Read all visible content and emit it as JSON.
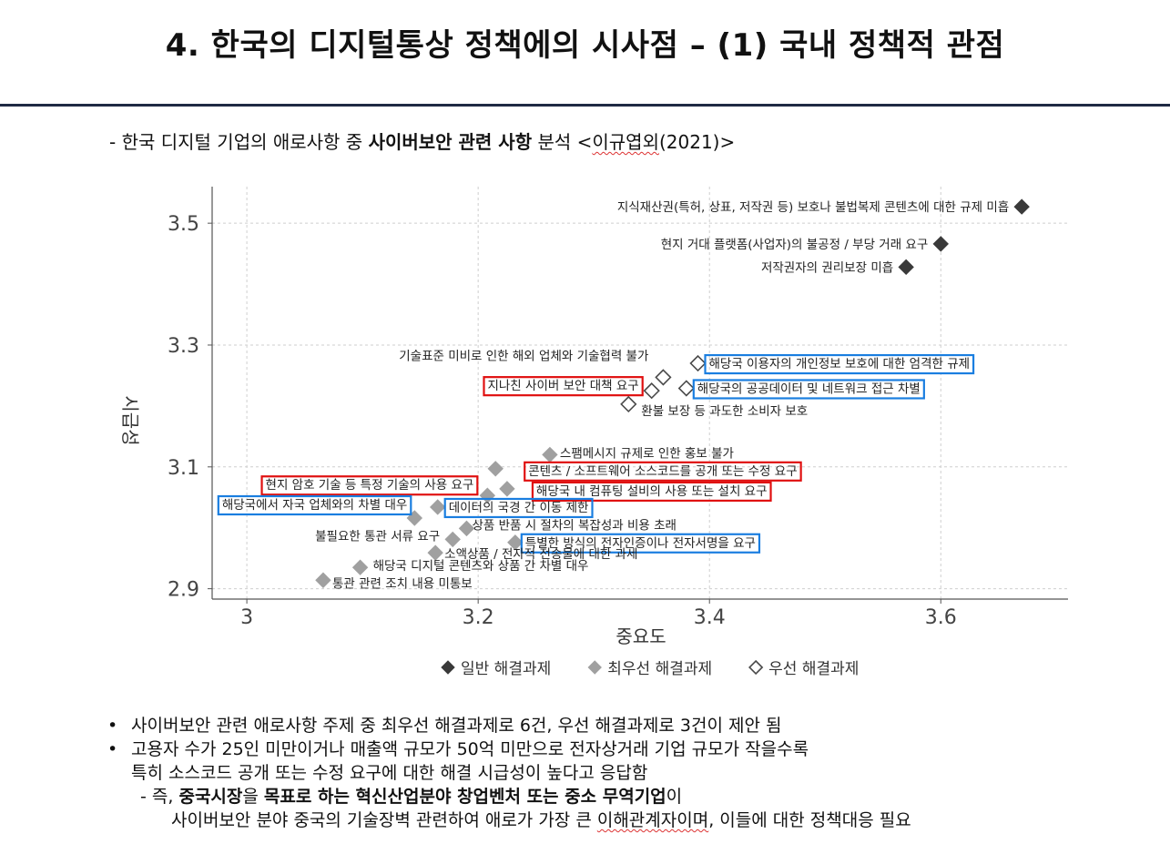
{
  "slide": {
    "title": "4. 한국의 디지털통상 정책에의 시사점 – (1) 국내 정책적 관점",
    "subtitle_prefix": "- 한국 디지털 기업의 애로사항 중 ",
    "subtitle_bold": "사이버보안 관련 사항",
    "subtitle_middle": " 분석 <",
    "subtitle_ref": "이규엽외",
    "subtitle_suffix": "(2021)>"
  },
  "chart_data": {
    "type": "scatter",
    "xlabel": "중요도",
    "ylabel": "시급성",
    "xlim": [
      2.97,
      3.71
    ],
    "ylim": [
      2.883,
      3.56
    ],
    "xticks": [
      3.0,
      3.2,
      3.4,
      3.6
    ],
    "yticks": [
      2.9,
      3.1,
      3.3,
      3.5
    ],
    "xtick_labels": [
      "3",
      "3.2",
      "3.4",
      "3.6"
    ],
    "ytick_labels": [
      "2.9",
      "3.1",
      "3.3",
      "3.5"
    ],
    "grid": true,
    "legend_position": "bottom-center",
    "colors": {
      "general": "#3a3a3a",
      "top_priority": "#a0a0a0",
      "priority": "#4a4a4a",
      "box_red": "#e01010",
      "box_blue": "#1a7ee0"
    },
    "series": [
      {
        "name": "일반 해결과제",
        "marker": "filled-diamond-dark",
        "points": [
          {
            "x": 3.67,
            "y": 3.527,
            "label": "지식재산권(특허, 상표, 저작권 등) 보호나 불법복제 콘텐츠에 대한 규제 미흡",
            "highlight": "none"
          },
          {
            "x": 3.6,
            "y": 3.466,
            "label": "현지 거대 플랫폼(사업자)의 불공정 / 부당 거래 요구",
            "highlight": "none"
          },
          {
            "x": 3.57,
            "y": 3.428,
            "label": "저작권자의 권리보장 미흡",
            "highlight": "none"
          }
        ]
      },
      {
        "name": "최우선 해결과제",
        "marker": "filled-diamond-gray",
        "points": [
          {
            "x": 3.262,
            "y": 3.12,
            "label": "스팸메시지 규제로 인한 홍보 불가",
            "highlight": "none"
          },
          {
            "x": 3.215,
            "y": 3.097,
            "label": "콘텐츠 / 소프트웨어 소스코드를 공개 또는 수정 요구",
            "highlight": "red"
          },
          {
            "x": 3.225,
            "y": 3.064,
            "label": "해당국 내 컴퓨팅 설비의 사용 또는 설치 요구",
            "highlight": "red"
          },
          {
            "x": 3.208,
            "y": 3.053,
            "label": "현지 암호 기술 등 특정 기술의 사용 요구",
            "highlight": "red"
          },
          {
            "x": 3.165,
            "y": 3.034,
            "label": "데이터의 국경 간 이동 제한",
            "highlight": "blue"
          },
          {
            "x": 3.145,
            "y": 3.016,
            "label": "해당국에서 자국 업체와의 차별 대우",
            "highlight": "blue"
          },
          {
            "x": 3.19,
            "y": 2.999,
            "label": "상품 반품 시 절차의 복잡성과 비용 초래",
            "highlight": "none"
          },
          {
            "x": 3.178,
            "y": 2.981,
            "label": "불필요한 통관 서류 요구",
            "highlight": "none"
          },
          {
            "x": 3.232,
            "y": 2.976,
            "label": "특별한 방식의 전자인증이나 전자서명을 요구",
            "highlight": "blue"
          },
          {
            "x": 3.163,
            "y": 2.959,
            "label": "소액상품 / 전자적 전송물에 대한 과세",
            "highlight": "none"
          },
          {
            "x": 3.098,
            "y": 2.935,
            "label": "해당국 디지털 콘텐츠와 상품 간 차별 대우",
            "highlight": "none"
          },
          {
            "x": 3.066,
            "y": 2.914,
            "label": "통관 관련 조치 내용 미통보",
            "highlight": "none"
          }
        ]
      },
      {
        "name": "우선 해결과제",
        "marker": "hollow-diamond",
        "points": [
          {
            "x": 3.39,
            "y": 3.27,
            "label": "해당국 이용자의 개인정보 보호에 대한 엄격한 규제",
            "highlight": "blue"
          },
          {
            "x": 3.36,
            "y": 3.247,
            "label": "기술표준 미비로 인한 해외 업체와 기술협력 불가",
            "highlight": "none"
          },
          {
            "x": 3.38,
            "y": 3.229,
            "label": "해당국의 공공데이터 및 네트워크 접근 차별",
            "highlight": "blue"
          },
          {
            "x": 3.35,
            "y": 3.225,
            "label": "지나친 사이버 보안 대책 요구",
            "highlight": "red"
          },
          {
            "x": 3.33,
            "y": 3.203,
            "label": "환불 보장 등 과도한 소비자 보호",
            "highlight": "none"
          }
        ]
      }
    ]
  },
  "notes": {
    "bullet_char": "•",
    "bullet1": "사이버보안 관련 애로사항 주제 중 최우선 해결과제로 6건, 우선 해결과제로 3건이 제안 됨",
    "bullet2_line1": "고용자 수가 25인 미만이거나 매출액 규모가 50억 미만으로 전자상거래 기업 규모가 작을수록",
    "bullet2_line2": "특히 소스코드 공개 또는 수정 요구에 대한 해결 시급성이 높다고 응답함",
    "sub_prefix": "- 즉, ",
    "sub_b1": "중국시장",
    "sub_t1": "을 ",
    "sub_b2": "목표로 하는 혁신산업분야 창업벤처 또는 중소 무역기업",
    "sub_t2": "이",
    "sub_line2_a": "사이버보안 분야 중국의 기술장벽 관련하여 애로가 가장 큰 ",
    "sub_line2_wavy": "이해관계자이며",
    "sub_line2_b": ", 이들에 대한 정책대응 필요"
  }
}
